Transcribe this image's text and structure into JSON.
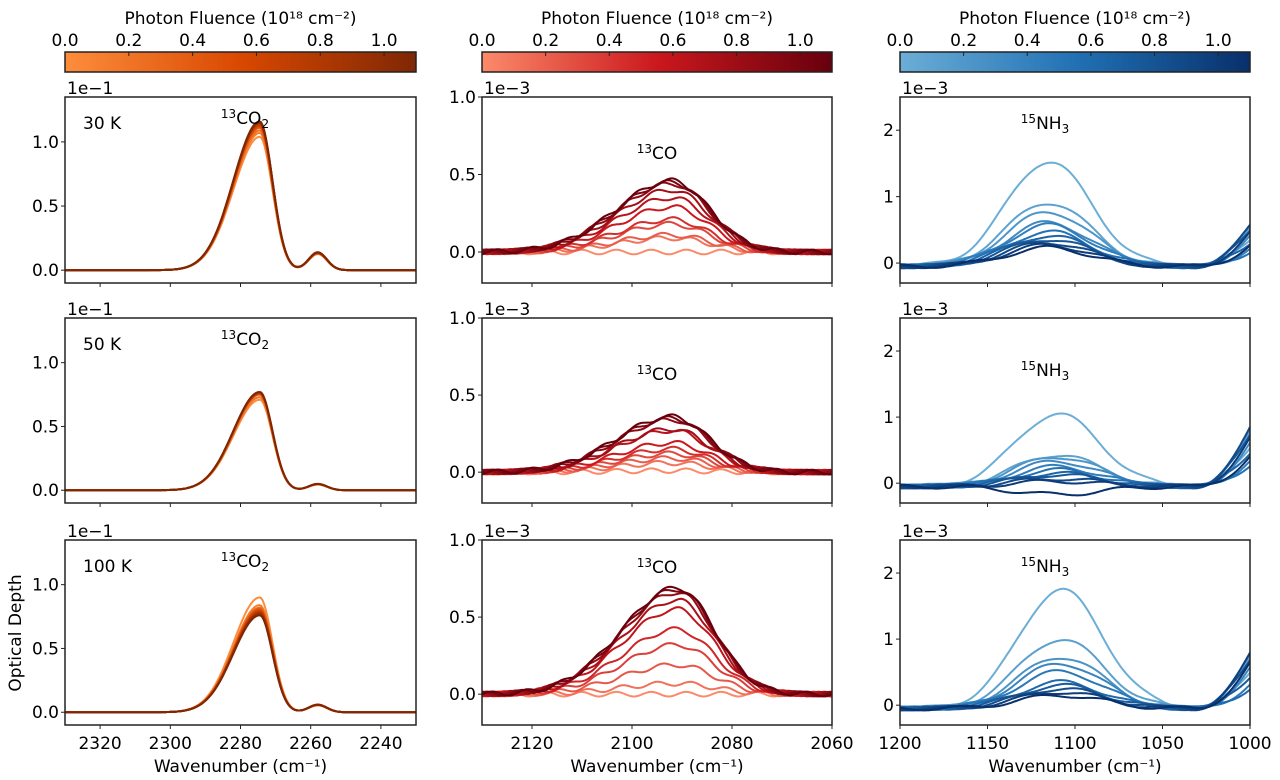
{
  "chart_data": {
    "type": "line",
    "layout": "3x3 grid of spectra panels with one colorbar per column",
    "ylabel": "Optical Depth",
    "xlabel": "Wavenumber (cm⁻¹)",
    "colorbars": [
      {
        "label": "Photon Fluence (10¹⁸ cm⁻²)",
        "ticks": [
          "0.0",
          "0.2",
          "0.4",
          "0.6",
          "0.8",
          "1.0"
        ],
        "range": [
          0,
          1.1
        ],
        "colors": [
          "#fd8d3c",
          "#d94801",
          "#7f2704"
        ]
      },
      {
        "label": "Photon Fluence (10¹⁸ cm⁻²)",
        "ticks": [
          "0.0",
          "0.2",
          "0.4",
          "0.6",
          "0.8",
          "1.0"
        ],
        "range": [
          0,
          1.1
        ],
        "colors": [
          "#fc8a6a",
          "#cb181d",
          "#67000d"
        ]
      },
      {
        "label": "Photon Fluence (10¹⁸ cm⁻²)",
        "ticks": [
          "0.0",
          "0.2",
          "0.4",
          "0.6",
          "0.8",
          "1.0"
        ],
        "range": [
          0,
          1.1
        ],
        "colors": [
          "#6baed6",
          "#2171b5",
          "#08306b"
        ]
      }
    ],
    "columns": [
      {
        "species": "13CO2",
        "label_sup": "13",
        "label_main": "CO",
        "label_sub": "2",
        "xlim": [
          2330,
          2230
        ],
        "xticks": [
          2320,
          2300,
          2280,
          2260,
          2240
        ],
        "scale_label": "1e−1",
        "ylim": [
          -0.1,
          1.35
        ],
        "yticks": [
          "0.0",
          "0.5",
          "1.0"
        ],
        "ytick_values": [
          0,
          0.5,
          1.0
        ]
      },
      {
        "species": "13CO",
        "label_sup": "13",
        "label_main": "CO",
        "label_sub": "",
        "xlim": [
          2130,
          2060
        ],
        "xticks": [
          2120,
          2100,
          2080,
          2060
        ],
        "scale_label": "1e−3",
        "ylim": [
          -0.2,
          1.0
        ],
        "yticks": [
          "0.0",
          "0.5",
          "1.0"
        ],
        "ytick_values": [
          0,
          0.5,
          1.0
        ]
      },
      {
        "species": "15NH3",
        "label_sup": "15",
        "label_main": "NH",
        "label_sub": "3",
        "xlim": [
          1200,
          1000
        ],
        "xticks": [
          1200,
          1150,
          1100,
          1050,
          1000
        ],
        "scale_label": "1e−3",
        "ylim": [
          -0.3,
          2.5
        ],
        "yticks": [
          "0",
          "1",
          "2"
        ],
        "ytick_values": [
          0,
          1,
          2
        ]
      }
    ],
    "rows": [
      {
        "temperature": "30 K",
        "co2": {
          "center": 2274.5,
          "peaks": [
            1.04,
            1.07,
            1.09,
            1.11,
            1.12,
            1.13,
            1.14,
            1.15,
            1.15,
            1.16
          ],
          "shoulder": 0.14
        },
        "co": {
          "center": 2092,
          "peaks": [
            0.0,
            0.09,
            0.11,
            0.18,
            0.21,
            0.29,
            0.35,
            0.4,
            0.44,
            0.45,
            0.46
          ]
        },
        "nh3": {
          "center": 1115,
          "peaks": [
            1.58,
            0.96,
            0.82,
            0.66,
            0.62,
            0.52,
            0.46,
            0.41,
            0.36,
            0.32,
            0.28
          ],
          "tail": 0.55
        }
      },
      {
        "temperature": "50 K",
        "co2": {
          "center": 2274.5,
          "peaks": [
            0.71,
            0.73,
            0.75,
            0.76,
            0.76,
            0.77,
            0.77
          ],
          "shoulder": 0.05
        },
        "co": {
          "center": 2092,
          "peaks": [
            0.01,
            0.06,
            0.09,
            0.12,
            0.15,
            0.19,
            0.27,
            0.28,
            0.34,
            0.35,
            0.36
          ]
        },
        "nh3": {
          "center": 1110,
          "peaks": [
            1.1,
            0.48,
            0.45,
            0.38,
            0.3,
            0.25,
            0.2,
            0.18,
            0.12,
            0.08,
            -0.12
          ],
          "tail": 0.8
        }
      },
      {
        "temperature": "100 K",
        "co2": {
          "center": 2274.5,
          "peaks": [
            0.9,
            0.84,
            0.82,
            0.81,
            0.8,
            0.79,
            0.78,
            0.77,
            0.76
          ],
          "shoulder": 0.06
        },
        "co": {
          "center": 2091,
          "peaks": [
            0.0,
            0.07,
            0.19,
            0.32,
            0.42,
            0.55,
            0.61,
            0.66,
            0.68,
            0.69
          ]
        },
        "nh3": {
          "center": 1108,
          "peaks": [
            1.8,
            1.05,
            0.78,
            0.68,
            0.56,
            0.4,
            0.35,
            0.3,
            0.25,
            0.2
          ],
          "tail": 0.75
        }
      }
    ]
  }
}
